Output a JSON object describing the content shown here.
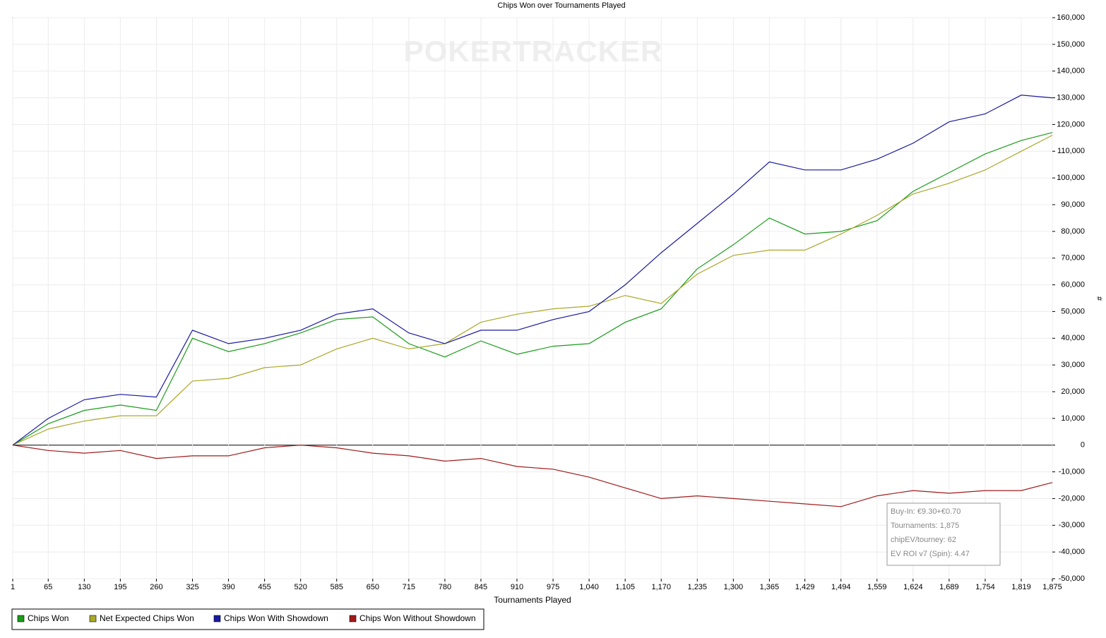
{
  "chart_data": {
    "type": "line",
    "title": "Chips Won over Tournaments Played",
    "watermark": "POKERTRACKER",
    "x_label": "Tournaments Played",
    "y_label": "#",
    "x": [
      1,
      65,
      130,
      195,
      260,
      325,
      390,
      455,
      520,
      585,
      650,
      715,
      780,
      845,
      910,
      975,
      1040,
      1105,
      1170,
      1235,
      1300,
      1365,
      1429,
      1494,
      1559,
      1624,
      1689,
      1754,
      1819,
      1875
    ],
    "series": [
      {
        "name": "Chips Won",
        "color": "#1a9c1a",
        "values": [
          0,
          8000,
          13000,
          15000,
          13000,
          40000,
          35000,
          38000,
          42000,
          47000,
          48000,
          38000,
          33000,
          39000,
          34000,
          37000,
          38000,
          46000,
          51000,
          66000,
          75000,
          85000,
          79000,
          80000,
          84000,
          95000,
          102000,
          109000,
          114000,
          117000
        ]
      },
      {
        "name": "Net Expected Chips Won",
        "color": "#aaa82a",
        "values": [
          0,
          6000,
          9000,
          11000,
          11000,
          24000,
          25000,
          29000,
          30000,
          36000,
          40000,
          36000,
          38000,
          46000,
          49000,
          51000,
          52000,
          56000,
          53000,
          64000,
          71000,
          73000,
          73000,
          79000,
          86000,
          94000,
          98000,
          103000,
          110000,
          116000
        ]
      },
      {
        "name": "Chips Won With Showdown",
        "color": "#1a1aa0",
        "values": [
          0,
          10000,
          17000,
          19000,
          18000,
          43000,
          38000,
          40000,
          43000,
          49000,
          51000,
          42000,
          38000,
          43000,
          43000,
          47000,
          50000,
          60000,
          72000,
          83000,
          94000,
          106000,
          103000,
          103000,
          107000,
          113000,
          121000,
          124000,
          131000,
          130000
        ]
      },
      {
        "name": "Chips Won Without Showdown",
        "color": "#a01a1a",
        "values": [
          0,
          -2000,
          -3000,
          -2000,
          -5000,
          -4000,
          -4000,
          -1000,
          0,
          -1000,
          -3000,
          -4000,
          -6000,
          -5000,
          -8000,
          -9000,
          -12000,
          -16000,
          -20000,
          -19000,
          -20000,
          -21000,
          -22000,
          -23000,
          -19000,
          -17000,
          -18000,
          -17000,
          -17000,
          -14000
        ]
      }
    ],
    "xlim": [
      1,
      1875
    ],
    "xticks": [
      1,
      65,
      130,
      195,
      260,
      325,
      390,
      455,
      520,
      585,
      650,
      715,
      780,
      845,
      910,
      975,
      {
        "value": 1040,
        "label": "1,040"
      },
      {
        "value": 1105,
        "label": "1,105"
      },
      {
        "value": 1170,
        "label": "1,170"
      },
      {
        "value": 1235,
        "label": "1,235"
      },
      {
        "value": 1300,
        "label": "1,300"
      },
      {
        "value": 1365,
        "label": "1,365"
      },
      {
        "value": 1429,
        "label": "1,429"
      },
      {
        "value": 1494,
        "label": "1,494"
      },
      {
        "value": 1559,
        "label": "1,559"
      },
      {
        "value": 1624,
        "label": "1,624"
      },
      {
        "value": 1689,
        "label": "1,689"
      },
      {
        "value": 1754,
        "label": "1,754"
      },
      {
        "value": 1819,
        "label": "1,819"
      },
      {
        "value": 1875,
        "label": "1,875"
      }
    ],
    "ylim": [
      -50000,
      160000
    ],
    "yticks": [
      {
        "value": -50000,
        "label": "-50,000"
      },
      {
        "value": -40000,
        "label": "-40,000"
      },
      {
        "value": -30000,
        "label": "-30,000"
      },
      {
        "value": -20000,
        "label": "-20,000"
      },
      {
        "value": -10000,
        "label": "-10,000"
      },
      0,
      {
        "value": 10000,
        "label": "10,000"
      },
      {
        "value": 20000,
        "label": "20,000"
      },
      {
        "value": 30000,
        "label": "30,000"
      },
      {
        "value": 40000,
        "label": "40,000"
      },
      {
        "value": 50000,
        "label": "50,000"
      },
      {
        "value": 60000,
        "label": "60,000"
      },
      {
        "value": 70000,
        "label": "70,000"
      },
      {
        "value": 80000,
        "label": "80,000"
      },
      {
        "value": 90000,
        "label": "90,000"
      },
      {
        "value": 100000,
        "label": "100,000"
      },
      {
        "value": 110000,
        "label": "110,000"
      },
      {
        "value": 120000,
        "label": "120,000"
      },
      {
        "value": 130000,
        "label": "130,000"
      },
      {
        "value": 140000,
        "label": "140,000"
      },
      {
        "value": 150000,
        "label": "150,000"
      },
      {
        "value": 160000,
        "label": "160,000"
      }
    ],
    "grid": true,
    "legend": "bottom-left",
    "annotations": [
      "Buy-In: €9.30+€0.70",
      "Tournaments: 1,875",
      "chipEV/tourney: 62",
      "EV ROI v7 (Spin): 4.47"
    ]
  }
}
